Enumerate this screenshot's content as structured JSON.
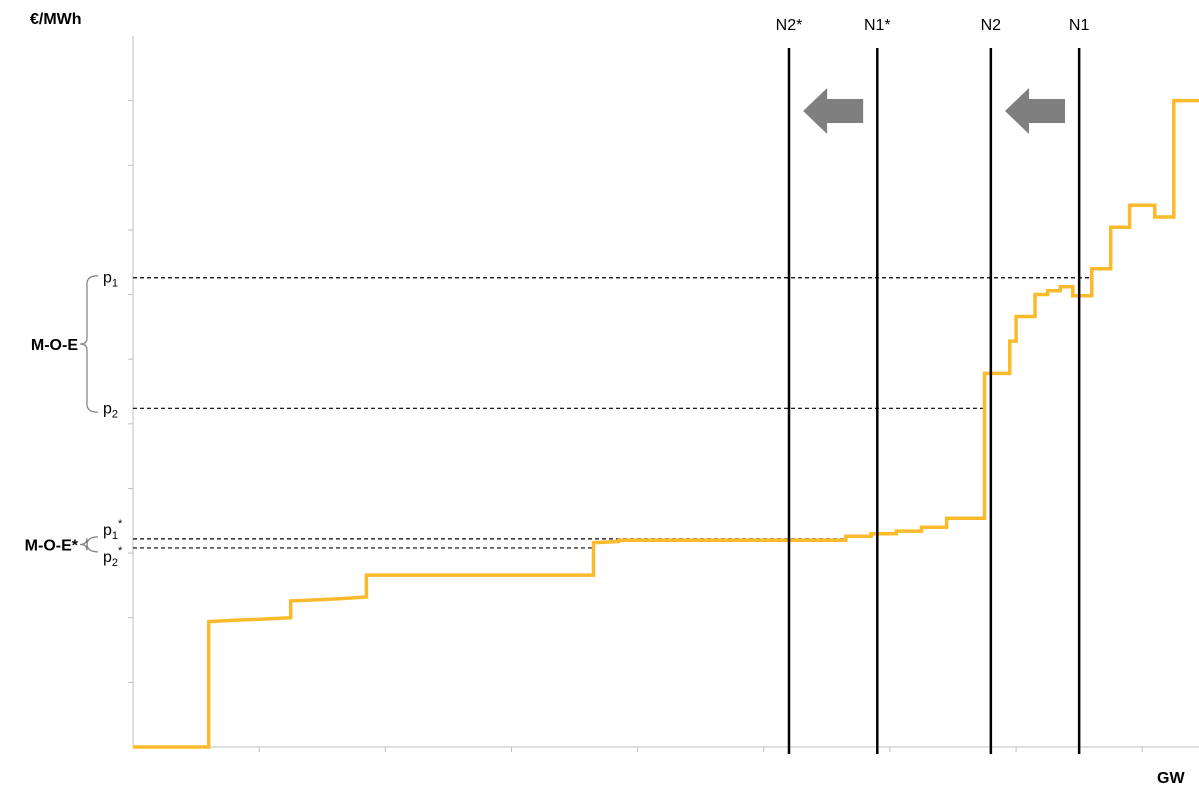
{
  "chart_data": {
    "type": "line",
    "title": "",
    "xlabel": "GW",
    "ylabel": "€/MWh",
    "grid": false,
    "legend": "none",
    "colors": {
      "supply_curve": "#FBBA2B",
      "demand_lines": "#000000",
      "arrows": "#7F7F7F"
    },
    "series": [
      {
        "curve_type": "step",
        "x": [
          0,
          6.0,
          6.0,
          8.0,
          10.5,
          12.5,
          12.5,
          15.0,
          17.0,
          18.5,
          18.5,
          36.5,
          36.5,
          38.5,
          38.5,
          42.0,
          56.5,
          56.5,
          58.5,
          58.5,
          60.5,
          60.5,
          62.5,
          62.5,
          64.5,
          64.5,
          67.5,
          67.5,
          69.5,
          69.5,
          70.0,
          70.0,
          71.5,
          71.5,
          72.5,
          72.5,
          73.5,
          73.5,
          74.5,
          74.5,
          76.0,
          76.0,
          77.5,
          77.5,
          79.0,
          79.0,
          81.0,
          81.0,
          82.5,
          82.5,
          84.5
        ],
        "y": [
          0,
          0,
          48.5,
          49.0,
          49.5,
          50.0,
          56.5,
          57.0,
          57.5,
          58.0,
          66.5,
          66.5,
          79.0,
          79.5,
          80.0,
          80.0,
          80.0,
          81.5,
          81.5,
          82.5,
          82.5,
          83.5,
          83.5,
          85.0,
          85.0,
          88.5,
          88.5,
          144.5,
          144.5,
          157.0,
          157.0,
          166.5,
          166.5,
          175.0,
          175.0,
          176.5,
          176.5,
          178.0,
          178.0,
          174.5,
          174.5,
          185.0,
          185.0,
          201.0,
          201.0,
          209.5,
          209.5,
          205.0,
          205.0,
          250.0,
          250.0
        ]
      }
    ],
    "demand_lines": [
      {
        "label": "N2*",
        "x": 52.0
      },
      {
        "label": "N1*",
        "x": 59.0
      },
      {
        "label": "N2",
        "x": 68.0
      },
      {
        "label": "N1",
        "x": 75.0
      }
    ],
    "price_levels": [
      {
        "label": "p",
        "sub": "1",
        "sup": "",
        "y": 181.5
      },
      {
        "label": "p",
        "sub": "2",
        "sup": "",
        "y": 131.0
      },
      {
        "label": "p",
        "sub": "1",
        "sup": "*",
        "y": 80.5
      },
      {
        "label": "p",
        "sub": "2",
        "sup": "*",
        "y": 77.0
      }
    ],
    "brackets": [
      {
        "label": "M-O-E",
        "from": "p1",
        "to": "p2"
      },
      {
        "label": "M-O-E*",
        "from": "p1*",
        "to": "p2*"
      }
    ],
    "shifts": [
      {
        "direction": "left",
        "from": "N1",
        "to": "N2"
      },
      {
        "direction": "left",
        "from": "N1*",
        "to": "N2*"
      }
    ],
    "xlim": [
      0,
      84.5
    ],
    "ylim": [
      0,
      275
    ]
  }
}
